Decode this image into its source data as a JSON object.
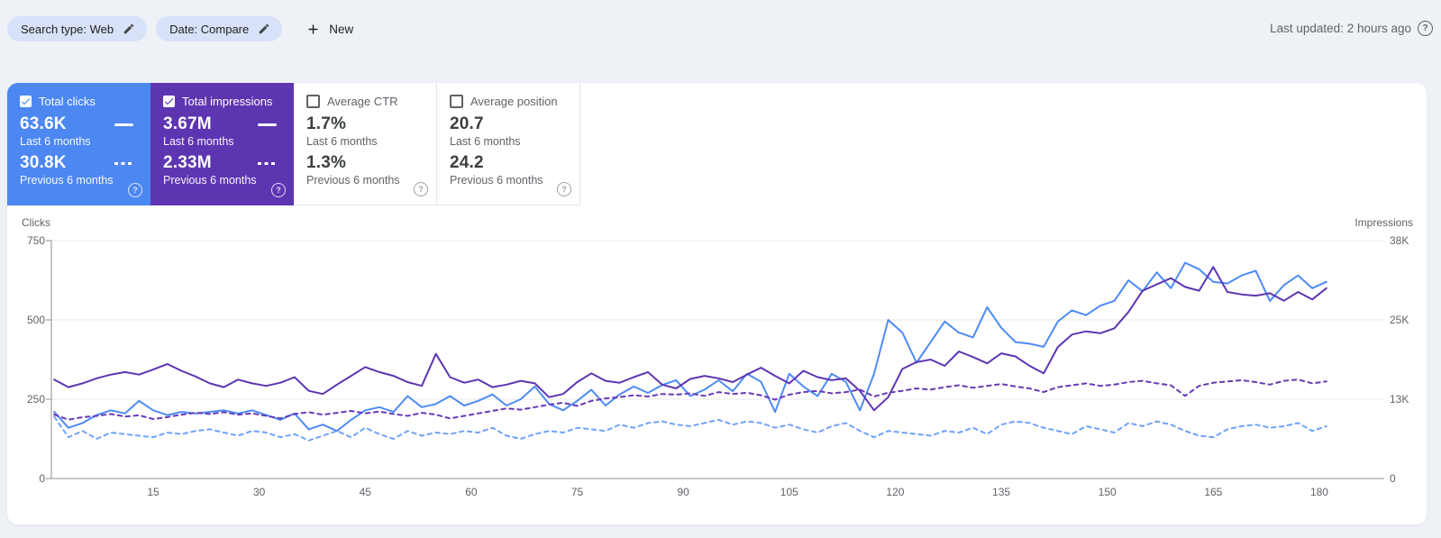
{
  "top_bar": {
    "filter_chips": [
      {
        "label": "Search type: Web"
      },
      {
        "label": "Date: Compare"
      }
    ],
    "new_button_label": "New",
    "last_updated": "Last updated: 2 hours ago"
  },
  "metric_cards": [
    {
      "label": "Total clicks",
      "checked": true,
      "color": "#4d87f2",
      "current_value": "63.6K",
      "current_caption": "Last 6 months",
      "previous_value": "30.8K",
      "previous_caption": "Previous 6 months"
    },
    {
      "label": "Total impressions",
      "checked": true,
      "color": "#5e35b1",
      "current_value": "3.67M",
      "current_caption": "Last 6 months",
      "previous_value": "2.33M",
      "previous_caption": "Previous 6 months"
    },
    {
      "label": "Average CTR",
      "checked": false,
      "color": "#ffffff",
      "current_value": "1.7%",
      "current_caption": "Last 6 months",
      "previous_value": "1.3%",
      "previous_caption": "Previous 6 months"
    },
    {
      "label": "Average position",
      "checked": false,
      "color": "#ffffff",
      "current_value": "20.7",
      "current_caption": "Last 6 months",
      "previous_value": "24.2",
      "previous_caption": "Previous 6 months"
    }
  ],
  "chart_data": {
    "type": "line",
    "left_axis": {
      "label": "Clicks",
      "ticks": [
        750,
        500,
        250,
        0
      ],
      "max": 750
    },
    "right_axis": {
      "label": "Impressions",
      "ticks": [
        "38K",
        "25K",
        "13K",
        "0"
      ],
      "tick_values_k": [
        38,
        25,
        13,
        0
      ],
      "max_k": 38
    },
    "x_ticks": [
      15,
      30,
      45,
      60,
      75,
      90,
      105,
      120,
      135,
      150,
      165,
      180
    ],
    "x_range_days": [
      1,
      181
    ],
    "grid": true,
    "x": [
      1,
      3,
      5,
      7,
      9,
      11,
      13,
      15,
      17,
      19,
      21,
      23,
      25,
      27,
      29,
      31,
      33,
      35,
      37,
      39,
      41,
      43,
      45,
      47,
      49,
      51,
      53,
      55,
      57,
      59,
      61,
      63,
      65,
      67,
      69,
      71,
      73,
      75,
      77,
      79,
      81,
      83,
      85,
      87,
      89,
      91,
      93,
      95,
      97,
      99,
      101,
      103,
      105,
      107,
      109,
      111,
      113,
      115,
      117,
      119,
      121,
      123,
      125,
      127,
      129,
      131,
      133,
      135,
      137,
      139,
      141,
      143,
      145,
      147,
      149,
      151,
      153,
      155,
      157,
      159,
      161,
      163,
      165,
      167,
      169,
      171,
      173,
      175,
      177,
      179,
      181
    ],
    "series": [
      {
        "name": "Clicks - Last 6 months",
        "axis": "left",
        "style": "solid",
        "color": "#4d8bf5",
        "unit": "clicks",
        "values": [
          210,
          160,
          175,
          200,
          215,
          205,
          245,
          215,
          200,
          210,
          205,
          210,
          215,
          205,
          215,
          200,
          185,
          205,
          155,
          170,
          150,
          185,
          215,
          225,
          210,
          260,
          225,
          235,
          260,
          230,
          245,
          265,
          230,
          250,
          290,
          235,
          215,
          245,
          280,
          230,
          265,
          290,
          270,
          295,
          310,
          260,
          280,
          310,
          275,
          330,
          305,
          210,
          330,
          290,
          260,
          330,
          305,
          215,
          330,
          500,
          460,
          365,
          430,
          495,
          460,
          445,
          540,
          475,
          430,
          425,
          415,
          495,
          530,
          515,
          545,
          560,
          625,
          590,
          650,
          600,
          680,
          660,
          620,
          615,
          640,
          655,
          560,
          610,
          640,
          600,
          620
        ]
      },
      {
        "name": "Clicks - Previous 6 months",
        "axis": "left",
        "style": "dashed",
        "color": "#6fa3f8",
        "unit": "clicks",
        "values": [
          195,
          130,
          150,
          125,
          145,
          140,
          135,
          130,
          145,
          140,
          150,
          155,
          145,
          135,
          150,
          145,
          130,
          140,
          120,
          135,
          150,
          130,
          160,
          140,
          125,
          150,
          135,
          145,
          140,
          150,
          145,
          160,
          135,
          125,
          140,
          150,
          145,
          160,
          155,
          150,
          170,
          160,
          175,
          180,
          170,
          165,
          175,
          185,
          170,
          180,
          175,
          160,
          170,
          155,
          145,
          165,
          175,
          150,
          130,
          150,
          145,
          140,
          135,
          150,
          145,
          160,
          140,
          170,
          180,
          175,
          160,
          150,
          140,
          165,
          155,
          145,
          175,
          165,
          180,
          170,
          150,
          135,
          130,
          155,
          165,
          170,
          160,
          165,
          175,
          150,
          165
        ]
      },
      {
        "name": "Impressions - Last 6 months",
        "axis": "right",
        "style": "solid",
        "color": "#5e35b1",
        "unit": "K",
        "values": [
          15.8,
          14.6,
          15.2,
          16.0,
          16.6,
          17.0,
          16.6,
          17.4,
          18.3,
          17.2,
          16.3,
          15.2,
          14.6,
          15.8,
          15.2,
          14.8,
          15.3,
          16.2,
          14.0,
          13.5,
          15.0,
          16.4,
          17.8,
          17.0,
          16.4,
          15.4,
          14.8,
          19.9,
          16.2,
          15.3,
          15.8,
          14.6,
          15.0,
          15.6,
          15.2,
          13.0,
          13.5,
          15.4,
          16.8,
          15.6,
          15.3,
          16.2,
          17.0,
          15.0,
          14.4,
          15.9,
          16.4,
          16.0,
          15.4,
          16.6,
          17.7,
          16.4,
          15.2,
          17.2,
          16.2,
          15.7,
          16.0,
          14.0,
          10.9,
          13.0,
          17.5,
          18.6,
          19.0,
          18.0,
          20.3,
          19.4,
          18.4,
          20.0,
          19.5,
          18.0,
          16.8,
          21.0,
          23.0,
          23.5,
          23.2,
          24.0,
          26.6,
          30.0,
          31.0,
          32.0,
          30.6,
          30.0,
          33.8,
          29.8,
          29.4,
          29.2,
          29.6,
          28.4,
          29.8,
          28.6,
          30.4
        ]
      },
      {
        "name": "Impressions - Previous 6 months",
        "axis": "right",
        "style": "dashed",
        "color": "#673ab7",
        "unit": "K",
        "values": [
          10.2,
          9.4,
          9.8,
          10.0,
          10.3,
          9.9,
          10.1,
          9.5,
          9.8,
          10.2,
          10.5,
          10.3,
          10.6,
          10.2,
          10.4,
          10.0,
          9.6,
          10.3,
          10.6,
          10.2,
          10.5,
          10.8,
          10.4,
          10.7,
          10.3,
          10.0,
          10.5,
          10.2,
          9.6,
          10.0,
          10.4,
          10.8,
          11.2,
          11.0,
          11.4,
          11.8,
          12.1,
          11.6,
          12.4,
          12.8,
          13.0,
          13.3,
          13.1,
          13.5,
          13.4,
          13.6,
          13.2,
          13.8,
          13.5,
          13.7,
          13.3,
          12.6,
          13.4,
          13.8,
          14.0,
          13.6,
          13.8,
          14.2,
          13.1,
          13.7,
          14.0,
          14.4,
          14.2,
          14.6,
          14.9,
          14.5,
          14.8,
          15.1,
          14.7,
          14.4,
          13.8,
          14.6,
          14.9,
          15.2,
          14.8,
          15.0,
          15.4,
          15.6,
          15.2,
          14.9,
          13.2,
          14.8,
          15.3,
          15.5,
          15.7,
          15.4,
          15.0,
          15.6,
          15.8,
          15.2,
          15.5
        ]
      }
    ]
  }
}
